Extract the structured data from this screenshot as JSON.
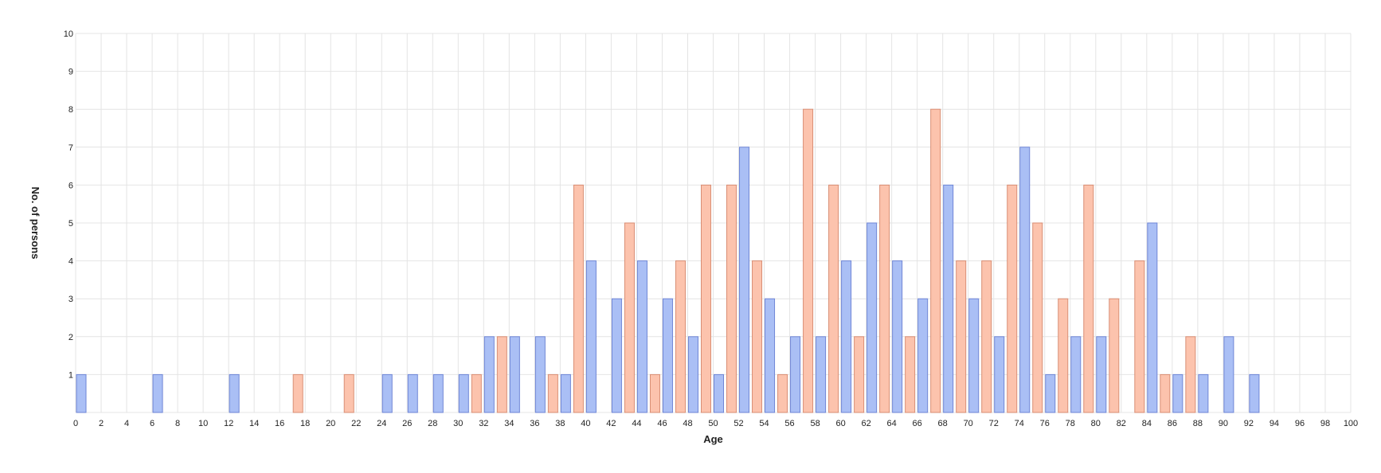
{
  "chart_data": {
    "type": "bar",
    "xlabel": "Age",
    "ylabel": "No. of persons",
    "xlim": [
      0,
      100
    ],
    "ylim": [
      0,
      10
    ],
    "x_ticks": [
      "0",
      "2",
      "4",
      "6",
      "8",
      "10",
      "12",
      "14",
      "16",
      "18",
      "20",
      "22",
      "24",
      "26",
      "28",
      "30",
      "32",
      "34",
      "36",
      "38",
      "40",
      "42",
      "44",
      "46",
      "48",
      "50",
      "52",
      "54",
      "56",
      "58",
      "60",
      "62",
      "64",
      "66",
      "68",
      "70",
      "72",
      "74",
      "76",
      "78",
      "80",
      "82",
      "84",
      "86",
      "88",
      "90",
      "92",
      "94",
      "96",
      "98",
      "100"
    ],
    "y_ticks": [
      "1",
      "2",
      "3",
      "4",
      "5",
      "6",
      "7",
      "8",
      "9",
      "10"
    ],
    "grid": true,
    "series": [
      {
        "color": "#aabff5",
        "stroke": "#6f86d6",
        "points": [
          [
            0,
            1
          ],
          [
            6,
            1
          ],
          [
            12,
            1
          ],
          [
            24,
            1
          ],
          [
            26,
            1
          ],
          [
            28,
            1
          ],
          [
            30,
            1
          ],
          [
            32,
            2
          ],
          [
            34,
            2
          ],
          [
            36,
            2
          ],
          [
            38,
            1
          ],
          [
            40,
            4
          ],
          [
            42,
            3
          ],
          [
            44,
            4
          ],
          [
            46,
            3
          ],
          [
            48,
            2
          ],
          [
            50,
            1
          ],
          [
            52,
            7
          ],
          [
            54,
            3
          ],
          [
            56,
            2
          ],
          [
            58,
            2
          ],
          [
            60,
            4
          ],
          [
            62,
            5
          ],
          [
            64,
            4
          ],
          [
            66,
            3
          ],
          [
            68,
            6
          ],
          [
            70,
            3
          ],
          [
            72,
            2
          ],
          [
            74,
            7
          ],
          [
            76,
            1
          ],
          [
            78,
            2
          ],
          [
            80,
            2
          ],
          [
            84,
            5
          ],
          [
            86,
            1
          ],
          [
            88,
            1
          ],
          [
            90,
            2
          ],
          [
            92,
            1
          ]
        ]
      },
      {
        "color": "#fcc3ad",
        "stroke": "#d98e74",
        "points": [
          [
            17,
            1
          ],
          [
            21,
            1
          ],
          [
            31,
            1
          ],
          [
            33,
            2
          ],
          [
            37,
            1
          ],
          [
            39,
            6
          ],
          [
            43,
            5
          ],
          [
            45,
            1
          ],
          [
            47,
            4
          ],
          [
            49,
            6
          ],
          [
            51,
            6
          ],
          [
            53,
            4
          ],
          [
            55,
            1
          ],
          [
            57,
            8
          ],
          [
            59,
            6
          ],
          [
            61,
            2
          ],
          [
            63,
            6
          ],
          [
            65,
            2
          ],
          [
            67,
            8
          ],
          [
            69,
            4
          ],
          [
            71,
            4
          ],
          [
            73,
            6
          ],
          [
            75,
            5
          ],
          [
            77,
            3
          ],
          [
            79,
            6
          ],
          [
            81,
            3
          ],
          [
            83,
            4
          ],
          [
            85,
            1
          ],
          [
            87,
            2
          ]
        ]
      }
    ]
  }
}
